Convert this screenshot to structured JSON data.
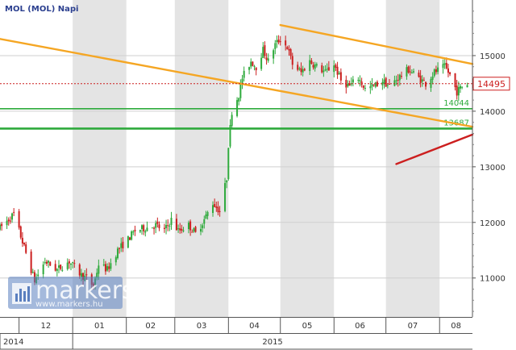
{
  "chart_data": {
    "type": "candlestick",
    "title": "MOL (MOL)  Napi",
    "ylim": [
      10300,
      16000
    ],
    "y_ticks": [
      11000,
      12000,
      13000,
      14000,
      15000
    ],
    "x_months": [
      {
        "label": "12",
        "start": "2014-12-01"
      },
      {
        "label": "01",
        "start": "2015-01-01"
      },
      {
        "label": "02",
        "start": "2015-02-01"
      },
      {
        "label": "03",
        "start": "2015-03-01"
      },
      {
        "label": "04",
        "start": "2015-04-01"
      },
      {
        "label": "05",
        "start": "2015-05-01"
      },
      {
        "label": "06",
        "start": "2015-06-01"
      },
      {
        "label": "07",
        "start": "2015-07-01"
      },
      {
        "label": "08",
        "start": "2015-08-01"
      }
    ],
    "x_range": [
      "2014-11-20",
      "2015-08-20"
    ],
    "year_labels": [
      {
        "label": "2014",
        "start": "2014-11-20"
      },
      {
        "label": "2015",
        "start": "2015-01-01"
      }
    ],
    "price_path": [
      [
        "2014-11-20",
        11900
      ],
      [
        "2014-11-28",
        12150
      ],
      [
        "2014-12-05",
        11450
      ],
      [
        "2014-12-10",
        10950
      ],
      [
        "2014-12-16",
        11300
      ],
      [
        "2014-12-23",
        11150
      ],
      [
        "2014-12-30",
        11300
      ],
      [
        "2015-01-06",
        11050
      ],
      [
        "2015-01-09",
        11000
      ],
      [
        "2015-01-13",
        10850
      ],
      [
        "2015-01-16",
        11250
      ],
      [
        "2015-01-21",
        11150
      ],
      [
        "2015-01-27",
        11500
      ],
      [
        "2015-02-02",
        11700
      ],
      [
        "2015-02-06",
        11850
      ],
      [
        "2015-02-12",
        11900
      ],
      [
        "2015-02-18",
        11950
      ],
      [
        "2015-02-23",
        11850
      ],
      [
        "2015-02-27",
        12050
      ],
      [
        "2015-03-03",
        11850
      ],
      [
        "2015-03-09",
        11950
      ],
      [
        "2015-03-13",
        11800
      ],
      [
        "2015-03-18",
        12050
      ],
      [
        "2015-03-23",
        12350
      ],
      [
        "2015-03-27",
        12200
      ],
      [
        "2015-03-31",
        12800
      ],
      [
        "2015-04-01",
        13400
      ],
      [
        "2015-04-03",
        14000
      ],
      [
        "2015-04-07",
        14300
      ],
      [
        "2015-04-09",
        14600
      ],
      [
        "2015-04-14",
        14900
      ],
      [
        "2015-04-17",
        14800
      ],
      [
        "2015-04-21",
        15100
      ],
      [
        "2015-04-24",
        14900
      ],
      [
        "2015-04-28",
        15200
      ],
      [
        "2015-05-01",
        15300
      ],
      [
        "2015-05-05",
        15150
      ],
      [
        "2015-05-08",
        14850
      ],
      [
        "2015-05-13",
        14700
      ],
      [
        "2015-05-18",
        14900
      ],
      [
        "2015-05-22",
        14800
      ],
      [
        "2015-05-27",
        14700
      ],
      [
        "2015-06-01",
        14850
      ],
      [
        "2015-06-05",
        14550
      ],
      [
        "2015-06-10",
        14450
      ],
      [
        "2015-06-15",
        14600
      ],
      [
        "2015-06-19",
        14400
      ],
      [
        "2015-06-24",
        14450
      ],
      [
        "2015-06-29",
        14550
      ],
      [
        "2015-07-03",
        14450
      ],
      [
        "2015-07-08",
        14600
      ],
      [
        "2015-07-14",
        14750
      ],
      [
        "2015-07-20",
        14600
      ],
      [
        "2015-07-24",
        14500
      ],
      [
        "2015-07-29",
        14700
      ],
      [
        "2015-08-04",
        14800
      ],
      [
        "2015-08-07",
        14650
      ],
      [
        "2015-08-11",
        14350
      ],
      [
        "2015-08-14",
        14450
      ],
      [
        "2015-08-17",
        14495
      ]
    ],
    "trendlines": [
      {
        "color": "#f5a623",
        "from": [
          "2014-11-20",
          15300
        ],
        "to": [
          "2015-08-20",
          13720
        ]
      },
      {
        "color": "#f5a623",
        "from": [
          "2015-05-01",
          15550
        ],
        "to": [
          "2015-08-20",
          14850
        ]
      },
      {
        "color": "#cc1f1f",
        "from": [
          "2015-07-07",
          13050
        ],
        "to": [
          "2015-08-20",
          13580
        ]
      }
    ],
    "horizontal_levels": [
      {
        "value": 14044,
        "label": "14044",
        "color": "#2eaa3c"
      },
      {
        "value": 13687,
        "label": "13687",
        "color": "#2eaa3c"
      }
    ],
    "current_price": {
      "value": 14495,
      "label": "14495",
      "color": "#cc1f1f"
    },
    "colors": {
      "up": "#2eaa3c",
      "down": "#cc1f1f",
      "band": "#e4e4e4"
    }
  },
  "watermark": {
    "brand": "markers",
    "url": "www.markers.hu"
  }
}
